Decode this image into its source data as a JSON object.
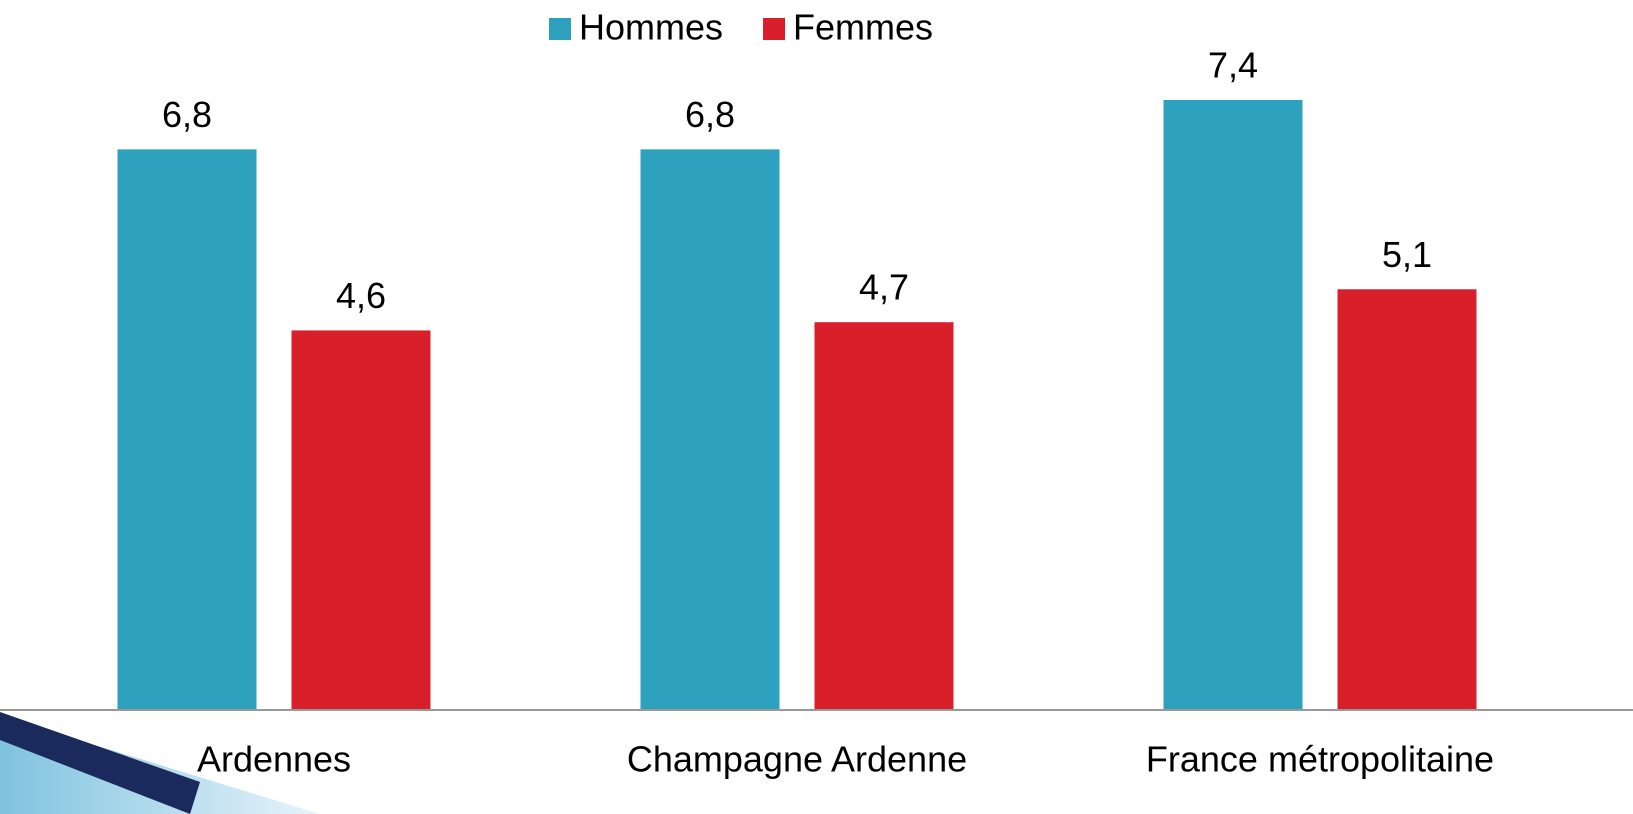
{
  "chart_data": {
    "type": "bar",
    "categories": [
      "Ardennes",
      "Champagne Ardenne",
      "France métropolitaine"
    ],
    "series": [
      {
        "name": "Hommes",
        "color": "#2ea1bf",
        "values": [
          6.8,
          6.8,
          7.4
        ],
        "value_labels": [
          "6,8",
          "6,8",
          "7,4"
        ]
      },
      {
        "name": "Femmes",
        "color": "#d9202a",
        "values": [
          4.6,
          4.7,
          5.1
        ],
        "value_labels": [
          "4,6",
          "4,7",
          "5,1"
        ]
      }
    ],
    "legend": "top"
  }
}
